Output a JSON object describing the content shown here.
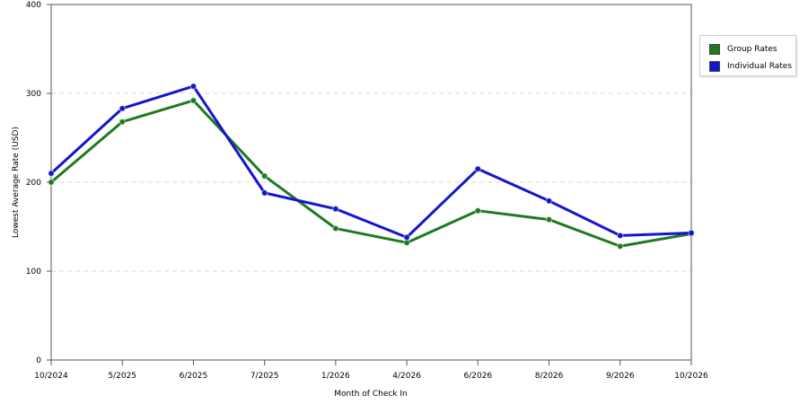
{
  "chart_data": {
    "type": "line",
    "categories": [
      "10/2024",
      "5/2025",
      "6/2025",
      "7/2025",
      "1/2026",
      "4/2026",
      "6/2026",
      "8/2026",
      "9/2026",
      "10/2026"
    ],
    "series": [
      {
        "name": "Group Rates",
        "color": "#1f7a1f",
        "values": [
          200,
          268,
          292,
          207,
          148,
          132,
          168,
          158,
          128,
          142
        ]
      },
      {
        "name": "Individual Rates",
        "color": "#1515cc",
        "values": [
          210,
          283,
          308,
          188,
          170,
          138,
          215,
          179,
          140,
          143
        ]
      }
    ],
    "xlabel": "Month of Check In",
    "ylabel": "Lowest Average Rate (USD)",
    "ylim": [
      0,
      400
    ],
    "yticks": [
      0,
      100,
      200,
      300,
      400
    ],
    "grid": true,
    "legend_position": "right"
  }
}
